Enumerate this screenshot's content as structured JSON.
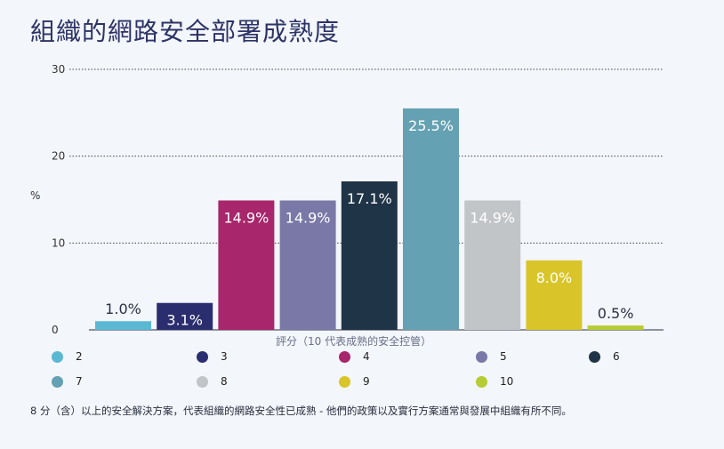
{
  "title": "組織的網路安全部署成熟度",
  "footnote": "8 分（含）以上的安全解決方案，代表組織的網路安全性已成熟 - 他們的政策以及實行方案通常與發展中組織有所不同。",
  "chart_data": {
    "type": "bar",
    "categories": [
      "2",
      "3",
      "4",
      "5",
      "6",
      "7",
      "8",
      "9",
      "10"
    ],
    "values": [
      1.0,
      3.1,
      14.9,
      14.9,
      17.1,
      25.5,
      14.9,
      8.0,
      0.5
    ],
    "data_labels": [
      "1.0%",
      "3.1%",
      "14.9%",
      "14.9%",
      "17.1%",
      "25.5%",
      "14.9%",
      "8.0%",
      "0.5%"
    ],
    "colors": [
      "#5bb8d2",
      "#2a2e6e",
      "#a8266b",
      "#7a78a6",
      "#203447",
      "#64a1b2",
      "#c2c5c8",
      "#d9c52a",
      "#b7cc34"
    ],
    "ylabel": "%",
    "xlabel": "評分（10 代表成熟的安全控管）",
    "ylim": [
      0,
      30
    ],
    "yticks": [
      "0",
      "10",
      "20",
      "30"
    ],
    "grid": true,
    "legend_position": "bottom"
  }
}
